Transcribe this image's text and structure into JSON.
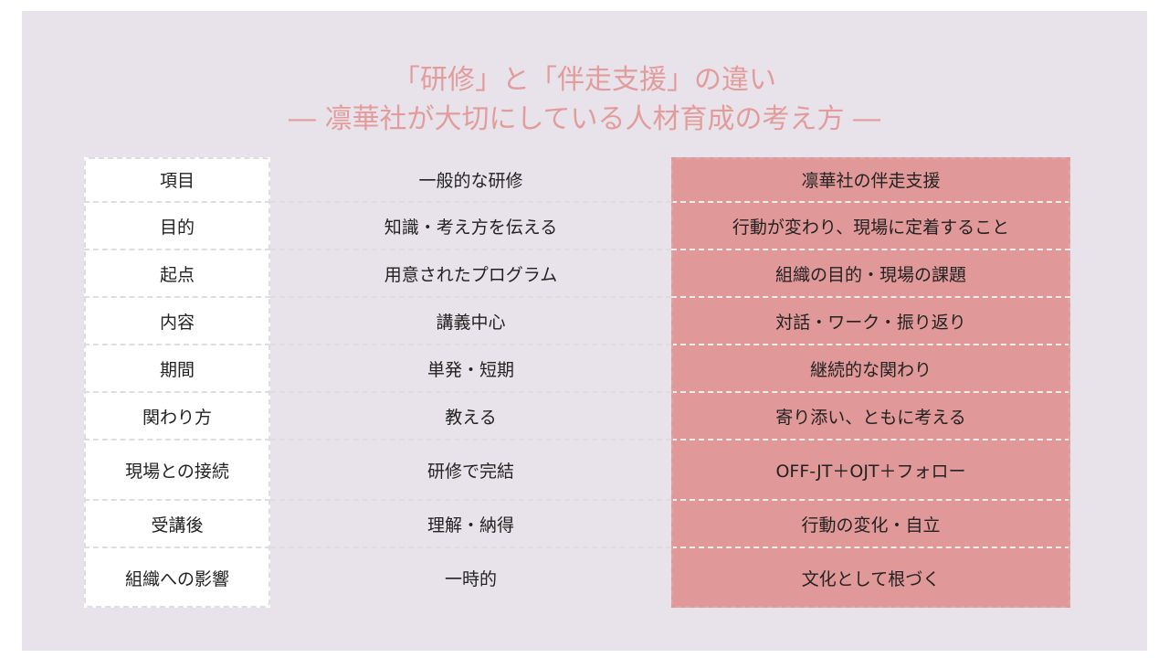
{
  "title": {
    "line1": "「研修」と「伴走支援」の違い",
    "line2": "― 凛華社が大切にしている人材育成の考え方 ―"
  },
  "colors": {
    "background": "#e8e3ea",
    "title": "#e29c9c",
    "highlight_column": "#e09898"
  },
  "table": {
    "rows": [
      [
        "項目",
        "一般的な研修",
        "凛華社の伴走支援"
      ],
      [
        "目的",
        "知識・考え方を伝える",
        "行動が変わり、現場に定着すること"
      ],
      [
        "起点",
        "用意されたプログラム",
        "組織の目的・現場の課題"
      ],
      [
        "内容",
        "講義中心",
        "対話・ワーク・振り返り"
      ],
      [
        "期間",
        "単発・短期",
        "継続的な関わり"
      ],
      [
        "関わり方",
        "教える",
        "寄り添い、ともに考える"
      ],
      [
        "現場との接続",
        "研修で完結",
        "OFF-JT＋OJT＋フォロー"
      ],
      [
        "受講後",
        "理解・納得",
        "行動の変化・自立"
      ],
      [
        "組織への影響",
        "一時的",
        "文化として根づく"
      ]
    ]
  }
}
